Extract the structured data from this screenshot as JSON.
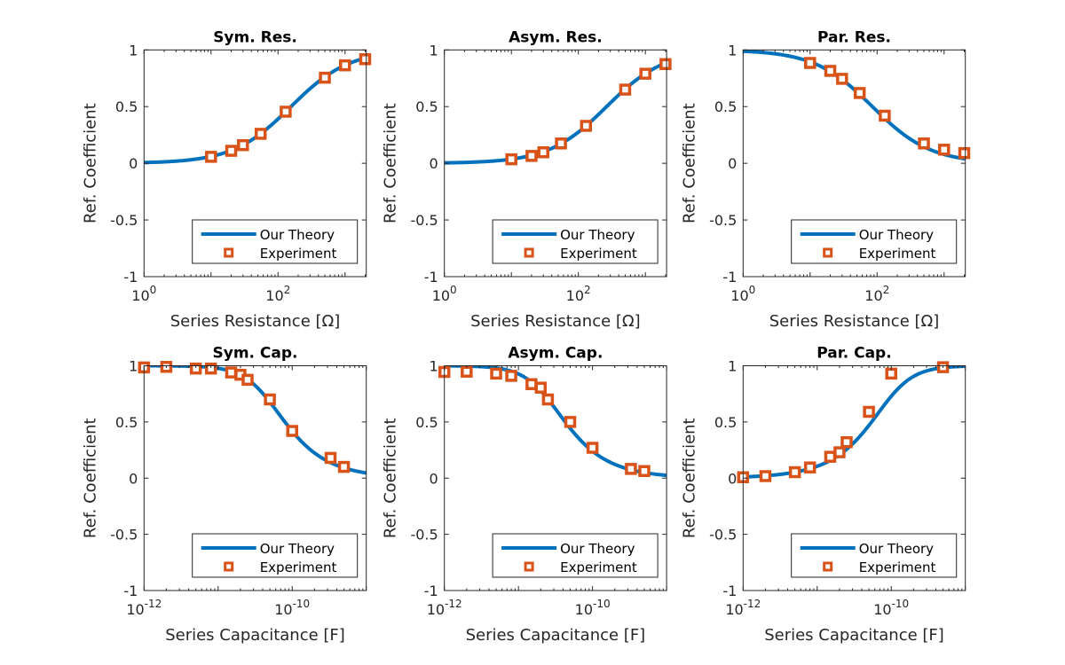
{
  "figure": {
    "colors": {
      "theory": "#0072BD",
      "experiment": "#D95319",
      "axis": "#262626",
      "background": "#ffffff"
    }
  },
  "chart_data": [
    {
      "type": "line",
      "id": "sym-res",
      "title": "Sym. Res.",
      "xlabel": "Series Resistance [Ω]",
      "ylabel": "Ref. Coefficient",
      "xscale": "log",
      "xlim": [
        1,
        2075
      ],
      "ylim": [
        -1,
        1
      ],
      "xticks": [
        {
          "base": "10",
          "exp": "0",
          "value": 1
        },
        {
          "base": "10",
          "exp": "2",
          "value": 100
        }
      ],
      "yticks": [
        {
          "label": "1",
          "value": 1
        },
        {
          "label": "0.5",
          "value": 0.5
        },
        {
          "label": "0",
          "value": 0
        },
        {
          "label": "-0.5",
          "value": -0.5
        },
        {
          "label": "-1",
          "value": -1
        }
      ],
      "legend": {
        "position": "bottom-right",
        "entries": [
          "Our Theory",
          "Experiment"
        ]
      },
      "series": [
        {
          "name": "Our Theory",
          "kind": "curve",
          "model": "ratio_up",
          "param": 156
        },
        {
          "name": "Experiment",
          "kind": "markers",
          "x": [
            10,
            20,
            30,
            55,
            130,
            500,
            1000,
            2000
          ],
          "y": [
            0.057,
            0.11,
            0.16,
            0.26,
            0.455,
            0.755,
            0.864,
            0.918
          ]
        }
      ]
    },
    {
      "type": "line",
      "id": "asym-res",
      "title": "Asym. Res.",
      "xlabel": "Series Resistance [Ω]",
      "ylabel": "Ref. Coefficient",
      "xscale": "log",
      "xlim": [
        1,
        2075
      ],
      "ylim": [
        -1,
        1
      ],
      "xticks": [
        {
          "base": "10",
          "exp": "0",
          "value": 1
        },
        {
          "base": "10",
          "exp": "2",
          "value": 100
        }
      ],
      "yticks": [
        {
          "label": "1",
          "value": 1
        },
        {
          "label": "0.5",
          "value": 0.5
        },
        {
          "label": "0",
          "value": 0
        },
        {
          "label": "-0.5",
          "value": -0.5
        },
        {
          "label": "-1",
          "value": -1
        }
      ],
      "legend": {
        "position": "bottom-right",
        "entries": [
          "Our Theory",
          "Experiment"
        ]
      },
      "series": [
        {
          "name": "Our Theory",
          "kind": "curve",
          "model": "ratio_up",
          "param": 264
        },
        {
          "name": "Experiment",
          "kind": "markers",
          "x": [
            10,
            20,
            30,
            55,
            130,
            500,
            1000,
            2000
          ],
          "y": [
            0.035,
            0.065,
            0.097,
            0.175,
            0.33,
            0.65,
            0.79,
            0.875
          ]
        }
      ]
    },
    {
      "type": "line",
      "id": "par-res",
      "title": "Par. Res.",
      "xlabel": "Series Resistance [Ω]",
      "ylabel": "Ref. Coefficient",
      "xscale": "log",
      "xlim": [
        1,
        2075
      ],
      "ylim": [
        -1,
        1
      ],
      "xticks": [
        {
          "base": "10",
          "exp": "0",
          "value": 1
        },
        {
          "base": "10",
          "exp": "2",
          "value": 100
        }
      ],
      "yticks": [
        {
          "label": "1",
          "value": 1
        },
        {
          "label": "0.5",
          "value": 0.5
        },
        {
          "label": "0",
          "value": 0
        },
        {
          "label": "-0.5",
          "value": -0.5
        },
        {
          "label": "-1",
          "value": -1
        }
      ],
      "legend": {
        "position": "bottom-right",
        "entries": [
          "Our Theory",
          "Experiment"
        ]
      },
      "series": [
        {
          "name": "Our Theory",
          "kind": "curve",
          "model": "ratio_down",
          "param": 85
        },
        {
          "name": "Experiment",
          "kind": "markers",
          "x": [
            10,
            20,
            30,
            55,
            130,
            500,
            1000,
            2000
          ],
          "y": [
            0.885,
            0.815,
            0.745,
            0.62,
            0.42,
            0.175,
            0.12,
            0.09
          ]
        }
      ]
    },
    {
      "type": "line",
      "id": "sym-cap",
      "title": "Sym. Cap.",
      "xlabel": "Series Capacitance [F]",
      "ylabel": "Ref. Coefficient",
      "xscale": "log",
      "xlim": [
        1e-12,
        1e-09
      ],
      "ylim": [
        -1,
        1
      ],
      "xticks": [
        {
          "base": "10",
          "exp": "-12",
          "value": 1e-12
        },
        {
          "base": "10",
          "exp": "-10",
          "value": 1e-10
        }
      ],
      "yticks": [
        {
          "label": "1",
          "value": 1
        },
        {
          "label": "0.5",
          "value": 0.5
        },
        {
          "label": "0",
          "value": 0
        },
        {
          "label": "-0.5",
          "value": -0.5
        },
        {
          "label": "-1",
          "value": -1
        }
      ],
      "legend": {
        "position": "bottom-right",
        "entries": [
          "Our Theory",
          "Experiment"
        ]
      },
      "series": [
        {
          "name": "Our Theory",
          "kind": "curve",
          "model": "cap_down",
          "param": 4.6e-11
        },
        {
          "name": "Experiment",
          "kind": "markers",
          "x": [
            1e-12,
            2e-12,
            5e-12,
            8e-12,
            1.5e-11,
            2e-11,
            2.5e-11,
            5e-11,
            1e-10,
            3.3e-10,
            5e-10
          ],
          "y": [
            0.985,
            0.99,
            0.975,
            0.975,
            0.94,
            0.92,
            0.875,
            0.7,
            0.42,
            0.18,
            0.1
          ]
        }
      ]
    },
    {
      "type": "line",
      "id": "asym-cap",
      "title": "Asym. Cap.",
      "xlabel": "Series Capacitance [F]",
      "ylabel": "Ref. Coefficient",
      "xscale": "log",
      "xlim": [
        1e-12,
        1e-09
      ],
      "ylim": [
        -1,
        1
      ],
      "xticks": [
        {
          "base": "10",
          "exp": "-12",
          "value": 1e-12
        },
        {
          "base": "10",
          "exp": "-10",
          "value": 1e-10
        }
      ],
      "yticks": [
        {
          "label": "1",
          "value": 1
        },
        {
          "label": "0.5",
          "value": 0.5
        },
        {
          "label": "0",
          "value": 0
        },
        {
          "label": "-0.5",
          "value": -0.5
        },
        {
          "label": "-1",
          "value": -1
        }
      ],
      "legend": {
        "position": "bottom-right",
        "entries": [
          "Our Theory",
          "Experiment"
        ]
      },
      "series": [
        {
          "name": "Our Theory",
          "kind": "curve",
          "model": "cap_down",
          "param": 2.47e-11
        },
        {
          "name": "Experiment",
          "kind": "markers",
          "x": [
            1e-12,
            2e-12,
            5e-12,
            8e-12,
            1.5e-11,
            2e-11,
            2.5e-11,
            5e-11,
            1e-10,
            3.3e-10,
            5e-10
          ],
          "y": [
            0.945,
            0.947,
            0.93,
            0.91,
            0.836,
            0.805,
            0.7,
            0.5,
            0.27,
            0.082,
            0.063
          ]
        }
      ]
    },
    {
      "type": "line",
      "id": "par-cap",
      "title": "Par. Cap.",
      "xlabel": "Series Capacitance [F]",
      "ylabel": "Ref. Coefficient",
      "xscale": "log",
      "xlim": [
        1e-12,
        1e-09
      ],
      "ylim": [
        -1,
        1
      ],
      "xticks": [
        {
          "base": "10",
          "exp": "-12",
          "value": 1e-12
        },
        {
          "base": "10",
          "exp": "-10",
          "value": 1e-10
        }
      ],
      "yticks": [
        {
          "label": "1",
          "value": 1
        },
        {
          "label": "0.5",
          "value": 0.5
        },
        {
          "label": "0",
          "value": 0
        },
        {
          "label": "-0.5",
          "value": -0.5
        },
        {
          "label": "-1",
          "value": -1
        }
      ],
      "legend": {
        "position": "bottom-right",
        "entries": [
          "Our Theory",
          "Experiment"
        ]
      },
      "series": [
        {
          "name": "Our Theory",
          "kind": "curve",
          "model": "cap_up",
          "param": 9.4e-11
        },
        {
          "name": "Experiment",
          "kind": "markers",
          "x": [
            1e-12,
            2e-12,
            5e-12,
            8e-12,
            1.5e-11,
            2e-11,
            2.5e-11,
            5e-11,
            1e-10,
            5e-10
          ],
          "y": [
            0.008,
            0.018,
            0.053,
            0.095,
            0.19,
            0.23,
            0.32,
            0.59,
            0.93,
            0.987
          ]
        }
      ]
    }
  ]
}
